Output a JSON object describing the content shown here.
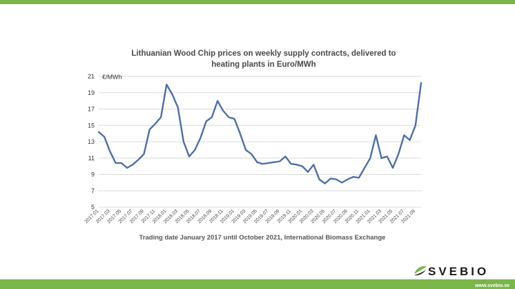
{
  "colors": {
    "brand_green": "#7ab648",
    "series_line": "#4a6ea9",
    "grid": "#d9d9d9"
  },
  "brand": {
    "logo_text": "SVEBIO",
    "url": "www.svebio.se"
  },
  "chart_data": {
    "type": "line",
    "title_lines": [
      "Lithuanian Wood Chip prices on weekly supply contracts, delivered to",
      "heating plants in Euro/MWh"
    ],
    "xlabel": "Trading date January 2017 until October 2021, International Biomass Exchange",
    "ylabel": "€/MWh",
    "ylim": [
      5,
      21
    ],
    "yticks": [
      5,
      7,
      9,
      11,
      13,
      15,
      17,
      19,
      21
    ],
    "x_tick_labels": [
      "2017.01",
      "2017.03",
      "2017.05",
      "2017.07",
      "2017.09",
      "2017.11",
      "2018.01",
      "2018.03",
      "2018.05",
      "2018.07",
      "2018.09",
      "2018.11",
      "2019.01",
      "2019.03",
      "2019.05",
      "2019.07",
      "2019.09",
      "2019.11",
      "2020.01",
      "2020.03",
      "2020.05",
      "2020.07",
      "2020.09",
      "2020.11",
      "2021.01",
      "2021.03",
      "2021.05",
      "2021.07",
      "2021.09"
    ],
    "grid": true,
    "legend": "none",
    "series": [
      {
        "x": [
          "2017.01",
          "2017.02",
          "2017.03",
          "2017.04",
          "2017.05",
          "2017.06",
          "2017.07",
          "2017.08",
          "2017.09",
          "2017.10",
          "2017.11",
          "2017.12",
          "2018.01",
          "2018.02",
          "2018.03",
          "2018.04",
          "2018.05",
          "2018.06",
          "2018.07",
          "2018.08",
          "2018.09",
          "2018.10",
          "2018.11",
          "2018.12",
          "2019.01",
          "2019.02",
          "2019.03",
          "2019.04",
          "2019.05",
          "2019.06",
          "2019.07",
          "2019.08",
          "2019.09",
          "2019.10",
          "2019.11",
          "2019.12",
          "2020.01",
          "2020.02",
          "2020.03",
          "2020.04",
          "2020.05",
          "2020.06",
          "2020.07",
          "2020.08",
          "2020.09",
          "2020.10",
          "2020.11",
          "2020.12",
          "2021.01",
          "2021.02",
          "2021.03",
          "2021.04",
          "2021.05",
          "2021.06",
          "2021.07",
          "2021.08",
          "2021.09",
          "2021.10"
        ],
        "values": [
          14.2,
          13.6,
          11.8,
          10.4,
          10.4,
          9.8,
          10.2,
          10.8,
          11.5,
          14.5,
          15.2,
          16.0,
          20.0,
          18.8,
          17.2,
          13.0,
          11.2,
          12.0,
          13.5,
          15.5,
          16.0,
          18.0,
          16.8,
          16.0,
          15.8,
          14.0,
          12.0,
          11.5,
          10.5,
          10.3,
          10.4,
          10.5,
          10.6,
          11.2,
          10.3,
          10.2,
          10.0,
          9.3,
          10.2,
          8.4,
          7.9,
          8.5,
          8.4,
          8.0,
          8.4,
          8.7,
          8.6,
          9.8,
          11.0,
          13.8,
          11.0,
          11.2,
          9.8,
          11.5,
          13.8,
          13.2,
          15.0,
          20.2
        ]
      }
    ]
  }
}
